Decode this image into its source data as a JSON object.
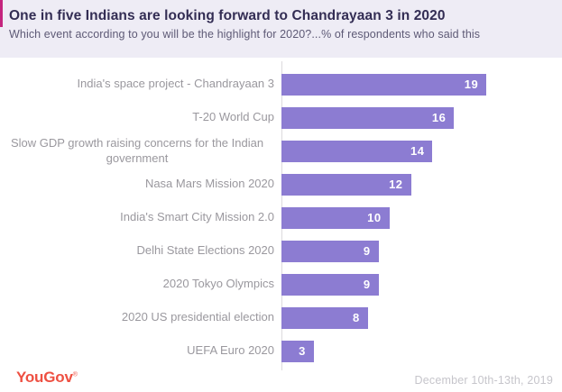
{
  "header": {
    "title": "One in five Indians are looking forward to Chandrayaan 3 in 2020",
    "subtitle": "Which event according to you will be the highlight for 2020?...% of respondents who said this"
  },
  "chart_data": {
    "type": "bar",
    "orientation": "horizontal",
    "categories": [
      "India's space project - Chandrayaan 3",
      "T-20 World Cup",
      "Slow GDP growth raising concerns for the Indian government",
      "Nasa Mars Mission 2020",
      "India's Smart City Mission 2.0",
      "Delhi State Elections 2020",
      "2020 Tokyo Olympics",
      "2020 US presidential election",
      "UEFA Euro 2020"
    ],
    "values": [
      19,
      16,
      14,
      12,
      10,
      9,
      9,
      8,
      3
    ],
    "title": "One in five Indians are looking forward to Chandrayaan 3 in 2020",
    "xlabel": "",
    "ylabel": "",
    "xlim": [
      0,
      26
    ],
    "unit": "% of respondents",
    "grid": false,
    "legend": false,
    "bar_color": "#8c7cd2",
    "value_label_color": "#ffffff"
  },
  "footer": {
    "logo": "YouGov",
    "logo_mark": "®",
    "date": "December 10th-13th, 2019"
  },
  "colors": {
    "header_background": "#eeecf5",
    "accent_pink": "#c4257e",
    "title_text": "#332d54",
    "subtitle_text": "#5e5a76",
    "bar_purple": "#8c7cd2",
    "category_text": "#9a989e",
    "axis_line": "#dcdade",
    "logo_red": "#ee5042",
    "date_text": "#c6c5cb"
  }
}
